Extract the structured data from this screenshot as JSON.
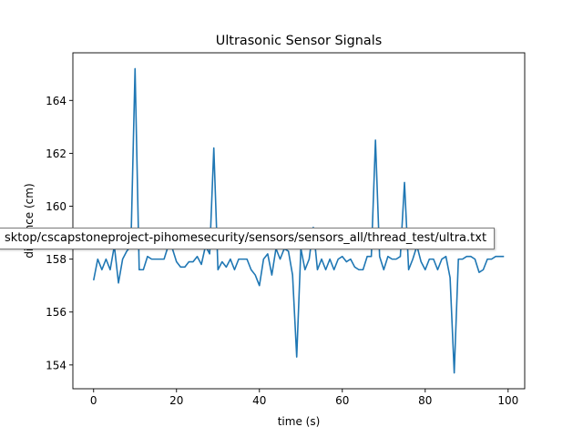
{
  "chart_data": {
    "type": "line",
    "title": "Ultrasonic Sensor Signals",
    "xlabel": "time (s)",
    "ylabel": "distance (cm)",
    "xlim": [
      -5,
      104
    ],
    "ylim": [
      153.1,
      165.8
    ],
    "xticks": [
      0,
      20,
      40,
      60,
      80,
      100
    ],
    "yticks": [
      154,
      156,
      158,
      160,
      162,
      164
    ],
    "grid": false,
    "line_color": "#1f77b4",
    "series": [
      {
        "x": [
          0,
          1,
          2,
          3,
          4,
          5,
          6,
          7,
          8,
          9,
          10,
          11,
          12,
          13,
          14,
          15,
          16,
          17,
          18,
          19,
          20,
          21,
          22,
          23,
          24,
          25,
          26,
          27,
          28,
          29,
          30,
          31,
          32,
          33,
          34,
          35,
          36,
          37,
          38,
          39,
          40,
          41,
          42,
          43,
          44,
          45,
          46,
          47,
          48,
          49,
          50,
          51,
          52,
          53,
          54,
          55,
          56,
          57,
          58,
          59,
          60,
          61,
          62,
          63,
          64,
          65,
          66,
          67,
          68,
          69,
          70,
          71,
          72,
          73,
          74,
          75,
          76,
          77,
          78,
          79,
          80,
          81,
          82,
          83,
          84,
          85,
          86,
          87,
          88,
          89,
          90,
          91,
          92,
          93,
          94,
          95,
          96,
          97,
          98,
          99
        ],
        "y": [
          157.2,
          158.0,
          157.6,
          158.0,
          157.6,
          158.5,
          157.1,
          158.0,
          158.3,
          158.5,
          165.2,
          157.6,
          157.6,
          158.1,
          158.0,
          158.0,
          158.0,
          158.0,
          158.5,
          158.4,
          157.9,
          157.7,
          157.7,
          157.9,
          157.9,
          158.1,
          157.8,
          158.5,
          158.2,
          162.2,
          157.6,
          157.9,
          157.7,
          158.0,
          157.6,
          158.0,
          158.0,
          158.0,
          157.6,
          157.4,
          157.0,
          158.0,
          158.2,
          157.4,
          158.4,
          158.0,
          158.4,
          158.3,
          157.4,
          154.3,
          158.4,
          157.6,
          158.0,
          159.2,
          157.6,
          158.0,
          157.6,
          158.0,
          157.6,
          158.0,
          158.1,
          157.9,
          158.0,
          157.7,
          157.6,
          157.6,
          158.1,
          158.1,
          162.5,
          158.1,
          157.6,
          158.1,
          158.0,
          158.0,
          158.1,
          160.9,
          157.6,
          158.0,
          158.5,
          157.9,
          157.6,
          158.0,
          158.0,
          157.6,
          158.0,
          158.1,
          157.3,
          153.7,
          158.0,
          158.0,
          158.1,
          158.1,
          158.0,
          157.5,
          157.6,
          158.0,
          158.0,
          158.1,
          158.1,
          158.1
        ]
      }
    ]
  },
  "tooltip": {
    "text": "sktop/cscapstoneproject-pihomesecurity/sensors/sensors_all/thread_test/ultra.txt"
  }
}
